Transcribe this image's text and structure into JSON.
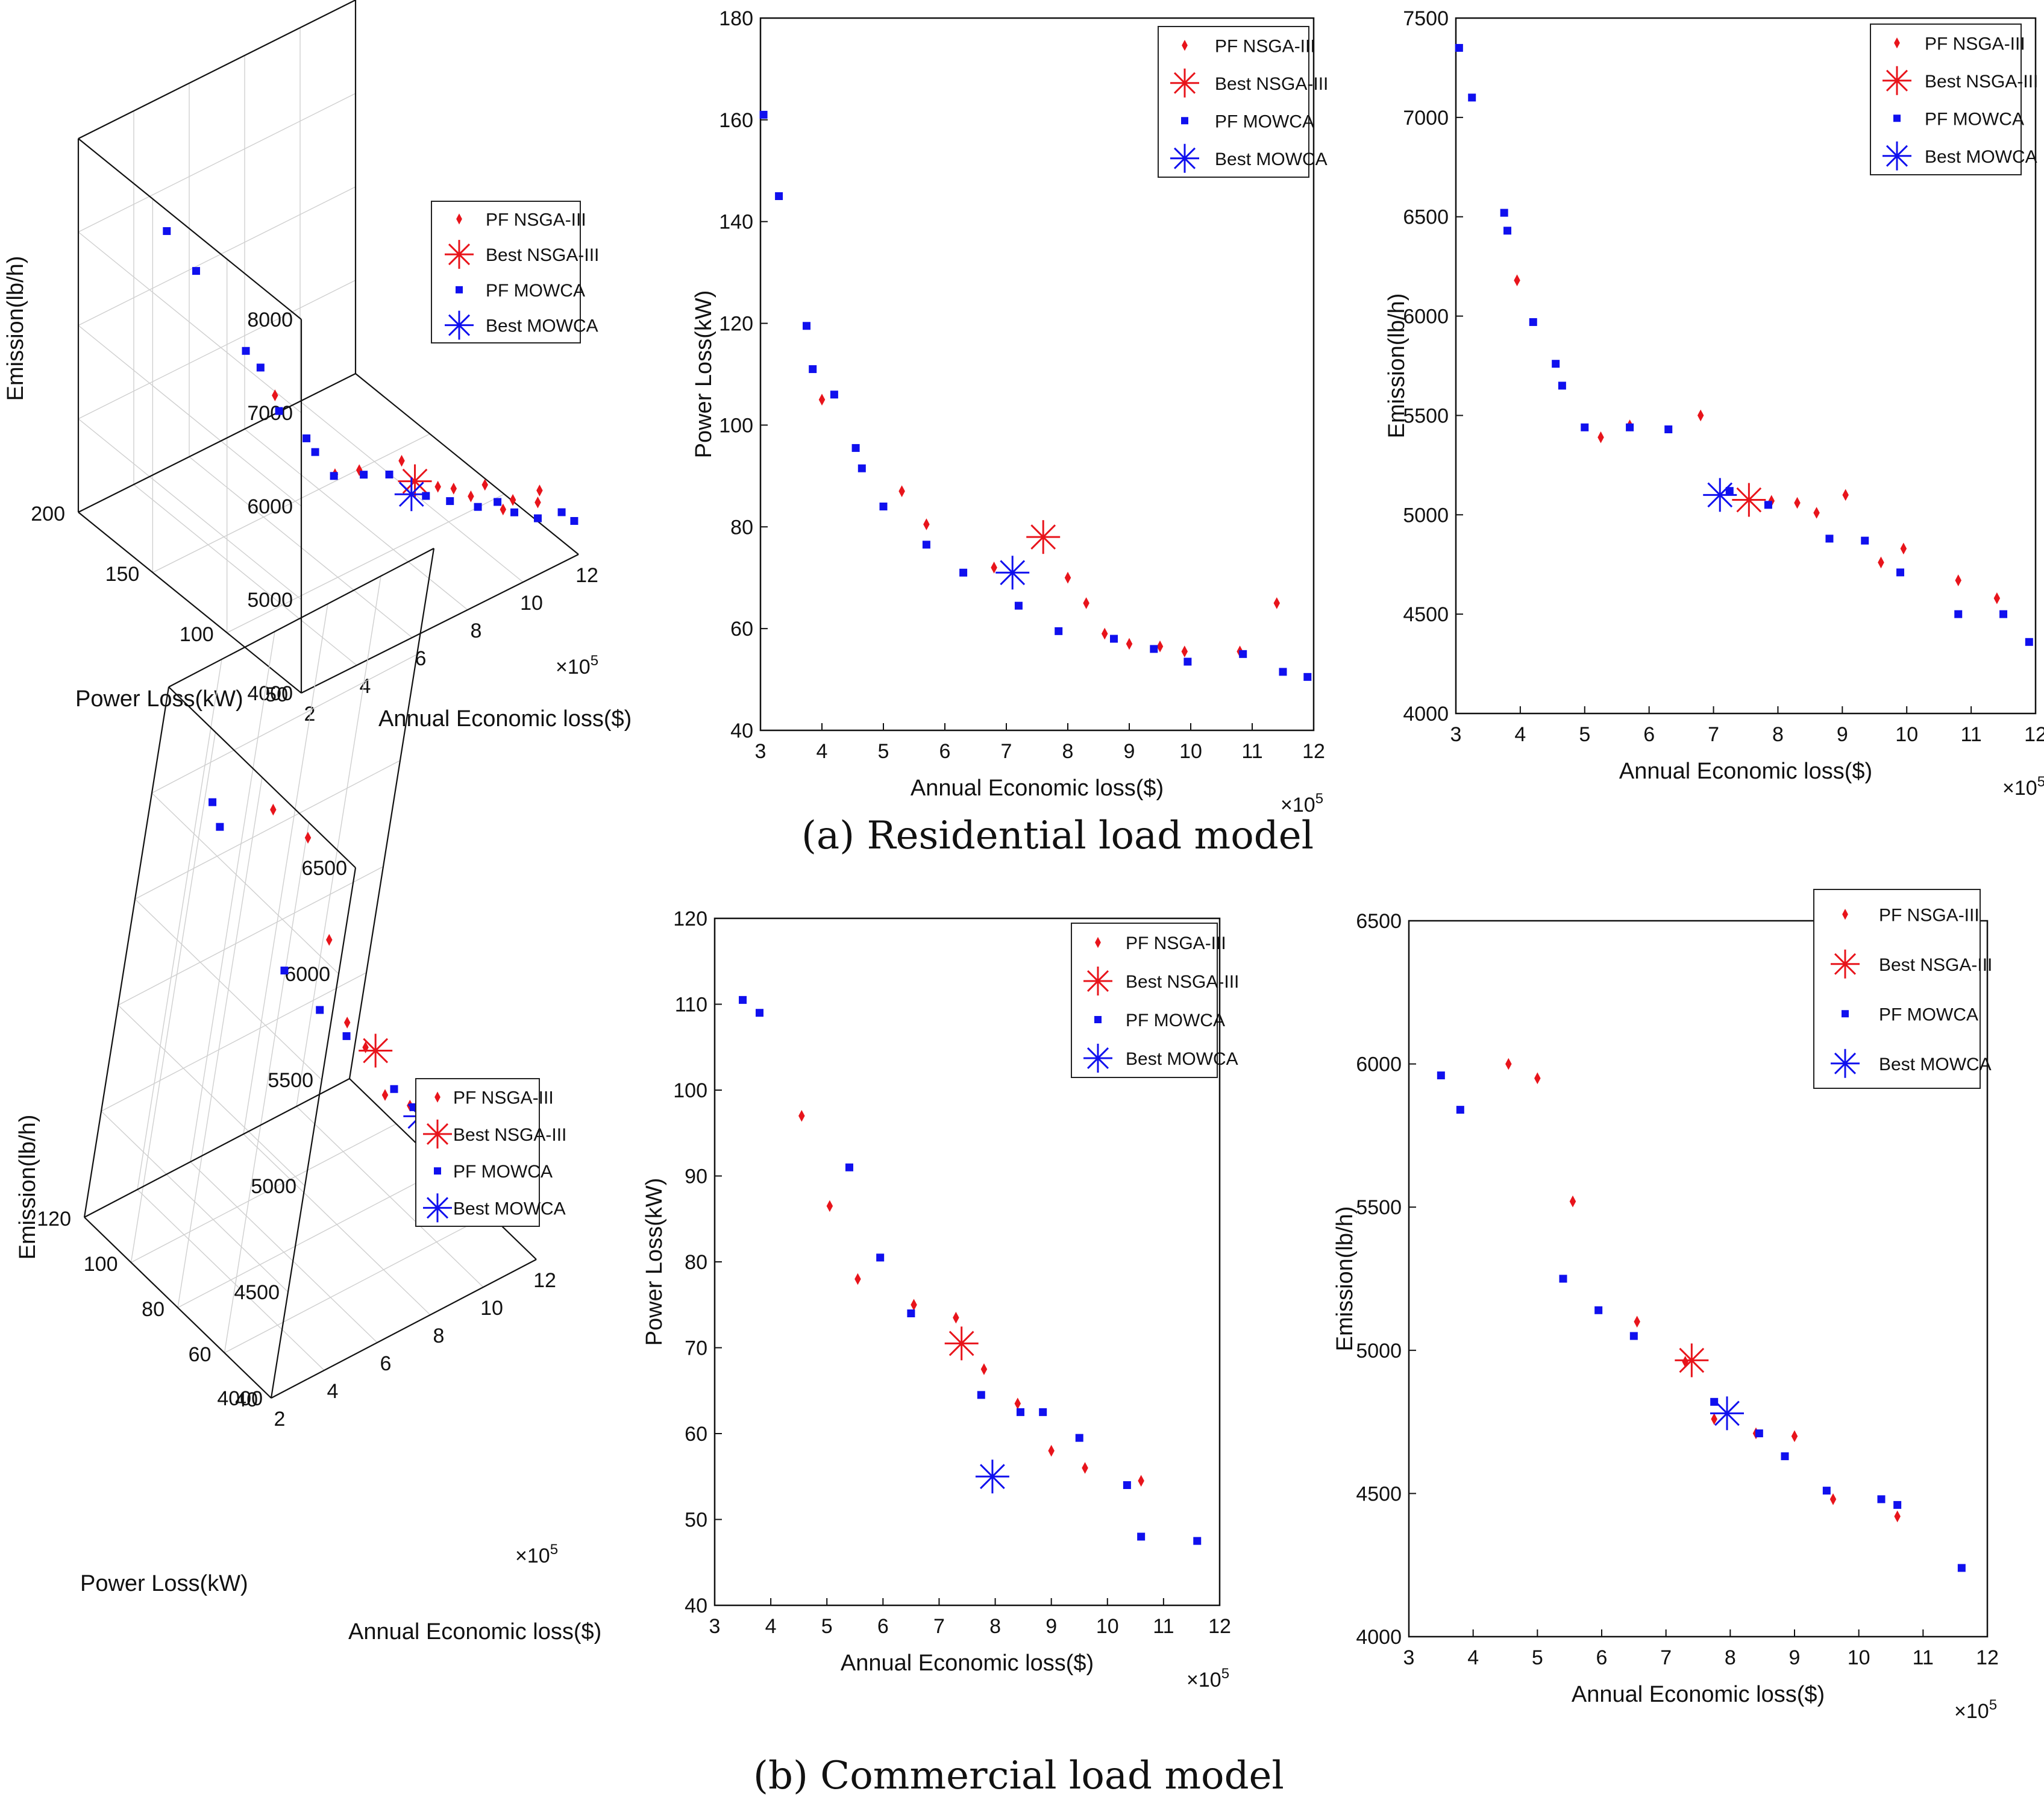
{
  "colors": {
    "nsga": "#e8141b",
    "mowca": "#1010ee",
    "axis": "#111111"
  },
  "legend_labels": [
    "PF NSGA-III",
    "Best NSGA-III",
    "PF  MOWCA",
    "Best MOWCA"
  ],
  "captions": {
    "a": "(a)   Residential load model",
    "b": "(b)   Commercial load model"
  },
  "chart_data": [
    {
      "id": "res-3d",
      "type": "scatter3d",
      "xlabel": "Annual Economic loss($)",
      "ylabel": "Power Loss(kW)",
      "zlabel": "Emission(lb/h)",
      "x_ticks": [
        "2",
        "4",
        "6",
        "8",
        "10",
        "12"
      ],
      "y_ticks": [
        "50",
        "100",
        "150",
        "200"
      ],
      "z_ticks": [
        "4000",
        "5000",
        "6000",
        "7000",
        "8000"
      ],
      "x_multiplier": "×10^5",
      "series": [
        {
          "name": "PF NSGA-III",
          "points": [
            [
              4.0,
              105,
              6180
            ],
            [
              5.2,
              87,
              5390
            ],
            [
              5.7,
              80,
              5450
            ],
            [
              6.8,
              72,
              5490
            ],
            [
              8.0,
              70,
              5060
            ],
            [
              8.3,
              65,
              5060
            ],
            [
              8.6,
              59,
              5010
            ],
            [
              9.0,
              57,
              5100
            ],
            [
              9.6,
              56,
              4760
            ],
            [
              9.9,
              55,
              4830
            ],
            [
              10.8,
              55,
              4670
            ],
            [
              11.4,
              65,
              4580
            ]
          ]
        },
        {
          "name": "Best NSGA-III",
          "points": [
            [
              7.6,
              78,
              5075
            ]
          ]
        },
        {
          "name": "PF  MOWCA",
          "points": [
            [
              3.1,
              161,
              7350
            ],
            [
              3.3,
              145,
              7100
            ],
            [
              3.7,
              119,
              6520
            ],
            [
              3.8,
              111,
              6430
            ],
            [
              4.2,
              106,
              5970
            ],
            [
              4.6,
              95,
              5760
            ],
            [
              4.7,
              91,
              5650
            ],
            [
              5.0,
              84,
              5440
            ],
            [
              5.7,
              77,
              5440
            ],
            [
              6.3,
              71,
              5430
            ],
            [
              7.3,
              65,
              5130
            ],
            [
              7.9,
              60,
              5050
            ],
            [
              8.8,
              58,
              4880
            ],
            [
              9.4,
              56,
              4870
            ],
            [
              9.9,
              54,
              4710
            ],
            [
              10.8,
              55,
              4500
            ],
            [
              11.5,
              52,
              4500
            ],
            [
              11.9,
              51,
              4360
            ]
          ]
        },
        {
          "name": "Best MOWCA",
          "points": [
            [
              7.1,
              71,
              5100
            ]
          ]
        }
      ]
    },
    {
      "id": "res-loss",
      "type": "scatter",
      "xlabel": "Annual Economic loss($)",
      "ylabel": "Power Loss(kW)",
      "xlim": [
        3,
        12
      ],
      "ylim": [
        40,
        180
      ],
      "x_multiplier": "×10^5",
      "series": [
        {
          "name": "PF NSGA-III",
          "x": [
            4.0,
            5.3,
            5.7,
            6.8,
            8.0,
            8.3,
            8.6,
            9.0,
            9.5,
            9.9,
            10.8,
            11.4
          ],
          "y": [
            105,
            87,
            80.5,
            72,
            70,
            65,
            59,
            57,
            56.5,
            55.5,
            55.5,
            65
          ]
        },
        {
          "name": "Best NSGA-III",
          "x": [
            7.6
          ],
          "y": [
            78
          ]
        },
        {
          "name": "PF  MOWCA",
          "x": [
            3.05,
            3.3,
            3.75,
            3.85,
            4.2,
            4.55,
            4.65,
            5.0,
            5.7,
            6.3,
            7.2,
            7.85,
            8.75,
            9.4,
            9.95,
            10.85,
            11.5,
            11.9
          ],
          "y": [
            161,
            145,
            119.5,
            111,
            106,
            95.5,
            91.5,
            84,
            76.5,
            71,
            64.5,
            59.5,
            58,
            56,
            53.5,
            55,
            51.5,
            50.5
          ]
        },
        {
          "name": "Best MOWCA",
          "x": [
            7.1
          ],
          "y": [
            71
          ]
        }
      ]
    },
    {
      "id": "res-emis",
      "type": "scatter",
      "xlabel": "Annual Economic loss($)",
      "ylabel": "Emission(lb/h)",
      "xlim": [
        3,
        12
      ],
      "ylim": [
        4000,
        7500
      ],
      "x_multiplier": "×10^5",
      "series": [
        {
          "name": "PF NSGA-III",
          "x": [
            3.95,
            5.25,
            5.7,
            6.8,
            7.9,
            8.3,
            8.6,
            9.05,
            9.6,
            9.95,
            10.8,
            11.4
          ],
          "y": [
            6180,
            5390,
            5450,
            5500,
            5070,
            5060,
            5010,
            5100,
            4760,
            4830,
            4670,
            4580
          ]
        },
        {
          "name": "Best NSGA-III",
          "x": [
            7.55
          ],
          "y": [
            5075
          ]
        },
        {
          "name": "PF  MOWCA",
          "x": [
            3.05,
            3.25,
            3.75,
            3.8,
            4.2,
            4.55,
            4.65,
            5.0,
            5.7,
            6.3,
            7.25,
            7.85,
            8.8,
            9.35,
            9.9,
            10.8,
            11.5,
            11.9
          ],
          "y": [
            7350,
            7100,
            6520,
            6430,
            5970,
            5760,
            5650,
            5440,
            5440,
            5430,
            5120,
            5050,
            4880,
            4870,
            4710,
            4500,
            4500,
            4360
          ]
        },
        {
          "name": "Best MOWCA",
          "x": [
            7.1
          ],
          "y": [
            5100
          ]
        }
      ]
    },
    {
      "id": "com-3d",
      "type": "scatter3d",
      "xlabel": "Annual Economic loss($)",
      "ylabel": "Power Loss(kW)",
      "zlabel": "Emission(lb/h)",
      "x_ticks": [
        "2",
        "4",
        "6",
        "8",
        "10",
        "12"
      ],
      "y_ticks": [
        "40",
        "60",
        "80",
        "100",
        "120"
      ],
      "z_ticks": [
        "4000",
        "4500",
        "5000",
        "5500",
        "6000",
        "6500"
      ],
      "x_multiplier": "×10^5",
      "series": [
        {
          "name": "PF NSGA-III",
          "points": [
            [
              4.55,
              97,
              6000
            ],
            [
              5.0,
              86.5,
              5950
            ],
            [
              5.6,
              78,
              5520
            ],
            [
              6.55,
              75,
              5100
            ],
            [
              7.3,
              73.5,
              4950
            ],
            [
              7.75,
              67.5,
              4760
            ],
            [
              8.4,
              63.5,
              4710
            ],
            [
              9.0,
              58,
              4700
            ],
            [
              9.6,
              56,
              4480
            ],
            [
              10.6,
              54.5,
              4420
            ]
          ]
        },
        {
          "name": "Best NSGA-III",
          "points": [
            [
              7.4,
              70.5,
              4960
            ]
          ]
        },
        {
          "name": "PF  MOWCA",
          "points": [
            [
              3.5,
              110.5,
              5960
            ],
            [
              3.8,
              109,
              5840
            ],
            [
              5.4,
              91,
              5250
            ],
            [
              5.95,
              80.5,
              5140
            ],
            [
              6.5,
              74,
              5050
            ],
            [
              7.75,
              64.5,
              4820
            ],
            [
              8.45,
              62.5,
              4710
            ],
            [
              8.85,
              62.5,
              4630
            ],
            [
              9.5,
              59.5,
              4510
            ],
            [
              10.35,
              54,
              4480
            ],
            [
              10.6,
              48,
              4460
            ],
            [
              11.6,
              47.5,
              4240
            ]
          ]
        },
        {
          "name": "Best MOWCA",
          "points": [
            [
              7.95,
              55,
              4780
            ]
          ]
        }
      ]
    },
    {
      "id": "com-loss",
      "type": "scatter",
      "xlabel": "Annual Economic loss($)",
      "ylabel": "Power Loss(kW)",
      "xlim": [
        3,
        12
      ],
      "ylim": [
        40,
        120
      ],
      "x_multiplier": "×10^5",
      "series": [
        {
          "name": "PF NSGA-III",
          "x": [
            4.55,
            5.05,
            5.55,
            6.55,
            7.3,
            7.8,
            8.4,
            9.0,
            9.6,
            10.6
          ],
          "y": [
            97,
            86.5,
            78,
            75,
            73.5,
            67.5,
            63.5,
            58,
            56,
            54.5
          ]
        },
        {
          "name": "Best NSGA-III",
          "x": [
            7.4
          ],
          "y": [
            70.5
          ]
        },
        {
          "name": "PF  MOWCA",
          "x": [
            3.5,
            3.8,
            5.4,
            5.95,
            6.5,
            7.75,
            8.45,
            8.85,
            9.5,
            10.35,
            10.6,
            11.6
          ],
          "y": [
            110.5,
            109,
            91,
            80.5,
            74,
            64.5,
            62.5,
            62.5,
            59.5,
            54,
            48,
            47.5
          ]
        },
        {
          "name": "Best MOWCA",
          "x": [
            7.95
          ],
          "y": [
            55
          ]
        }
      ]
    },
    {
      "id": "com-emis",
      "type": "scatter",
      "xlabel": "Annual Economic loss($)",
      "ylabel": "Emission(lb/h)",
      "xlim": [
        3,
        12
      ],
      "ylim": [
        4000,
        6500
      ],
      "x_multiplier": "×10^5",
      "series": [
        {
          "name": "PF NSGA-III",
          "x": [
            4.55,
            5.0,
            5.55,
            6.55,
            7.3,
            7.75,
            8.4,
            9.0,
            9.6,
            10.6
          ],
          "y": [
            6000,
            5950,
            5520,
            5100,
            4960,
            4760,
            4710,
            4700,
            4480,
            4420
          ]
        },
        {
          "name": "Best NSGA-III",
          "x": [
            7.4
          ],
          "y": [
            4965
          ]
        },
        {
          "name": "PF  MOWCA",
          "x": [
            3.5,
            3.8,
            5.4,
            5.95,
            6.5,
            7.75,
            8.45,
            8.85,
            9.5,
            10.35,
            10.6,
            11.6
          ],
          "y": [
            5960,
            5840,
            5250,
            5140,
            5050,
            4820,
            4710,
            4630,
            4510,
            4480,
            4460,
            4240
          ]
        },
        {
          "name": "Best MOWCA",
          "x": [
            7.95
          ],
          "y": [
            4780
          ]
        }
      ]
    }
  ]
}
